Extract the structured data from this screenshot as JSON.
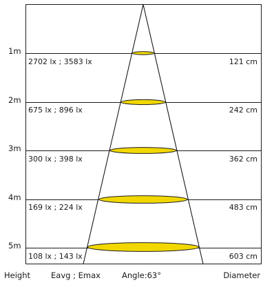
{
  "rows": [
    {
      "height": "1m",
      "lux": "2702 lx ; 3583 lx",
      "diameter": "121 cm"
    },
    {
      "height": "2m",
      "lux": "675 lx ; 896 lx",
      "diameter": "242 cm"
    },
    {
      "height": "3m",
      "lux": "300 lx ; 398 lx",
      "diameter": "362 cm"
    },
    {
      "height": "4m",
      "lux": "169 lx ; 224 lx",
      "diameter": "483 cm"
    },
    {
      "height": "5m",
      "lux": "108 lx ; 143 lx",
      "diameter": "603 cm"
    }
  ],
  "footer": {
    "height": "Height",
    "eavg_emax": "Eavg ; Emax",
    "angle": "Angle:63°",
    "diameter": "Diameter"
  },
  "colors": {
    "spot_fill": "#f2d800",
    "line": "#1a1a1a"
  }
}
